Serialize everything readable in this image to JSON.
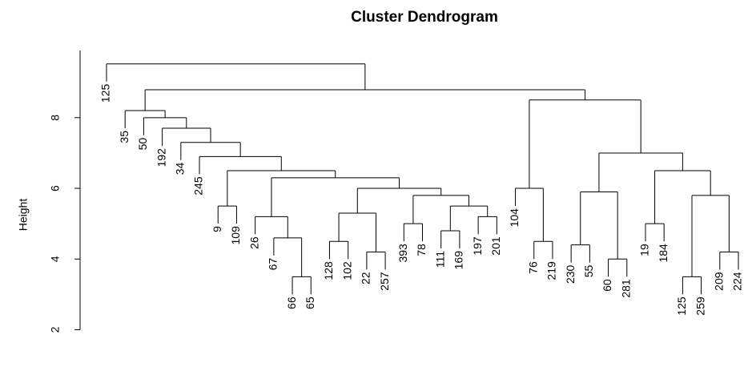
{
  "chart_data": {
    "type": "dendrogram",
    "title": "Cluster Dendrogram",
    "ylabel": "Height",
    "ylim": [
      1.4,
      9.9
    ],
    "yticks": [
      2,
      4,
      6,
      8
    ],
    "tree": {
      "height": 9.52,
      "children": [
        {
          "label": "125"
        },
        {
          "height": 8.79,
          "children": [
            {
              "height": 8.2,
              "children": [
                {
                  "label": "35"
                },
                {
                  "height": 8.0,
                  "children": [
                    {
                      "label": "50"
                    },
                    {
                      "height": 7.7,
                      "children": [
                        {
                          "label": "192"
                        },
                        {
                          "height": 7.3,
                          "children": [
                            {
                              "label": "34"
                            },
                            {
                              "height": 6.9,
                              "children": [
                                {
                                  "label": "245"
                                },
                                {
                                  "height": 6.5,
                                  "children": [
                                    {
                                      "height": 5.5,
                                      "children": [
                                        {
                                          "label": "9"
                                        },
                                        {
                                          "label": "109"
                                        }
                                      ]
                                    },
                                    {
                                      "height": 6.3,
                                      "children": [
                                        {
                                          "height": 5.2,
                                          "children": [
                                            {
                                              "label": "26"
                                            },
                                            {
                                              "height": 4.6,
                                              "children": [
                                                {
                                                  "label": "67"
                                                },
                                                {
                                                  "height": 3.5,
                                                  "children": [
                                                    {
                                                      "label": "66"
                                                    },
                                                    {
                                                      "label": "65"
                                                    }
                                                  ]
                                                }
                                              ]
                                            }
                                          ]
                                        },
                                        {
                                          "height": 6.0,
                                          "children": [
                                            {
                                              "height": 5.3,
                                              "children": [
                                                {
                                                  "height": 4.5,
                                                  "children": [
                                                    {
                                                      "label": "128"
                                                    },
                                                    {
                                                      "label": "102"
                                                    }
                                                  ]
                                                },
                                                {
                                                  "height": 4.2,
                                                  "children": [
                                                    {
                                                      "label": "22"
                                                    },
                                                    {
                                                      "label": "257"
                                                    }
                                                  ]
                                                }
                                              ]
                                            },
                                            {
                                              "height": 5.8,
                                              "children": [
                                                {
                                                  "height": 5.0,
                                                  "children": [
                                                    {
                                                      "label": "393"
                                                    },
                                                    {
                                                      "label": "78"
                                                    }
                                                  ]
                                                },
                                                {
                                                  "height": 5.5,
                                                  "children": [
                                                    {
                                                      "height": 4.8,
                                                      "children": [
                                                        {
                                                          "label": "111"
                                                        },
                                                        {
                                                          "label": "169"
                                                        }
                                                      ]
                                                    },
                                                    {
                                                      "height": 5.2,
                                                      "children": [
                                                        {
                                                          "label": "197"
                                                        },
                                                        {
                                                          "label": "201"
                                                        }
                                                      ]
                                                    }
                                                  ]
                                                }
                                              ]
                                            }
                                          ]
                                        }
                                      ]
                                    }
                                  ]
                                }
                              ]
                            }
                          ]
                        }
                      ]
                    }
                  ]
                }
              ]
            },
            {
              "height": 8.5,
              "children": [
                {
                  "height": 6.0,
                  "children": [
                    {
                      "label": "104"
                    },
                    {
                      "height": 4.5,
                      "children": [
                        {
                          "label": "76"
                        },
                        {
                          "label": "219"
                        }
                      ]
                    }
                  ]
                },
                {
                  "height": 7.0,
                  "children": [
                    {
                      "height": 5.9,
                      "children": [
                        {
                          "height": 4.4,
                          "children": [
                            {
                              "label": "230"
                            },
                            {
                              "label": "55"
                            }
                          ]
                        },
                        {
                          "height": 4.0,
                          "children": [
                            {
                              "label": "60"
                            },
                            {
                              "label": "281"
                            }
                          ]
                        }
                      ]
                    },
                    {
                      "height": 6.5,
                      "children": [
                        {
                          "height": 5.0,
                          "children": [
                            {
                              "label": "19"
                            },
                            {
                              "label": "184"
                            }
                          ]
                        },
                        {
                          "height": 5.8,
                          "children": [
                            {
                              "height": 3.5,
                              "children": [
                                {
                                  "label": "125"
                                },
                                {
                                  "label": "259"
                                }
                              ]
                            },
                            {
                              "height": 4.2,
                              "children": [
                                {
                                  "label": "209"
                                },
                                {
                                  "label": "224"
                                }
                              ]
                            }
                          ]
                        }
                      ]
                    }
                  ]
                }
              ]
            }
          ]
        }
      ]
    }
  }
}
